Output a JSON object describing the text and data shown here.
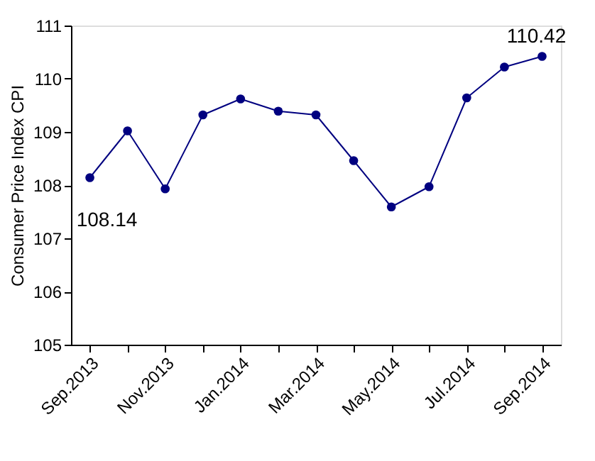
{
  "chart_data": {
    "type": "line",
    "ylabel": "Consumer Price Index CPI",
    "categories": [
      "Sep.2013",
      null,
      "Nov.2013",
      null,
      "Jan.2014",
      null,
      "Mar.2014",
      null,
      "May.2014",
      null,
      "Jul.2014",
      null,
      "Sep.2014"
    ],
    "series": [
      {
        "color": "#000080",
        "values": [
          108.14,
          109.02,
          107.93,
          109.32,
          109.62,
          109.39,
          109.32,
          108.46,
          107.59,
          107.97,
          109.64,
          110.22,
          110.42
        ],
        "value_labels": [
          "108.14",
          null,
          null,
          null,
          null,
          null,
          null,
          null,
          null,
          null,
          null,
          null,
          "110.42"
        ]
      }
    ],
    "ylim": [
      105,
      111
    ],
    "yticks": [
      105,
      106,
      107,
      108,
      109,
      110,
      111
    ],
    "marker": "circle",
    "line_style": "solid",
    "grid": false
  }
}
